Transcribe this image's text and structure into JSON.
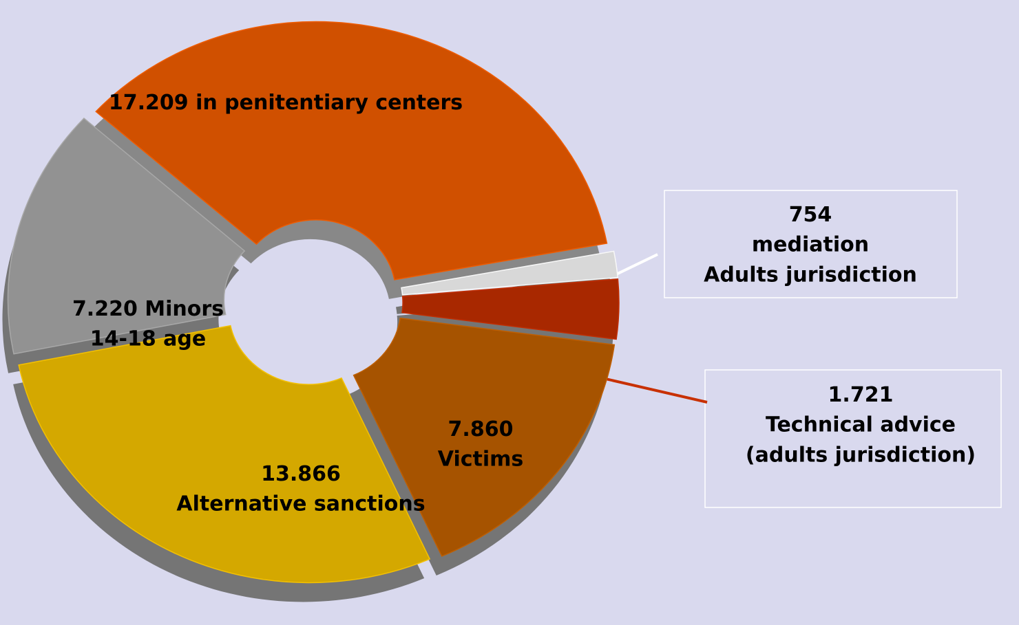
{
  "chart_data": {
    "type": "pie",
    "categories": [
      [
        "in penitentiary centers"
      ],
      [
        "mediation",
        "Adults jurisdiction"
      ],
      [
        "Technical advice",
        "(adults jurisdiction)"
      ],
      [
        "Victims"
      ],
      [
        "Alternative sanctions"
      ],
      [
        "Minors",
        "14-18 age"
      ]
    ],
    "values": [
      17209,
      754,
      1721,
      7860,
      13866,
      7220
    ],
    "value_labels": [
      "17.209",
      "754",
      "1.721",
      "7.860",
      "13.866",
      "7.220"
    ],
    "colors": [
      "#d05000",
      "#d8d8d8",
      "#a82800",
      "#a65300",
      "#d4a800",
      "#929292"
    ]
  }
}
